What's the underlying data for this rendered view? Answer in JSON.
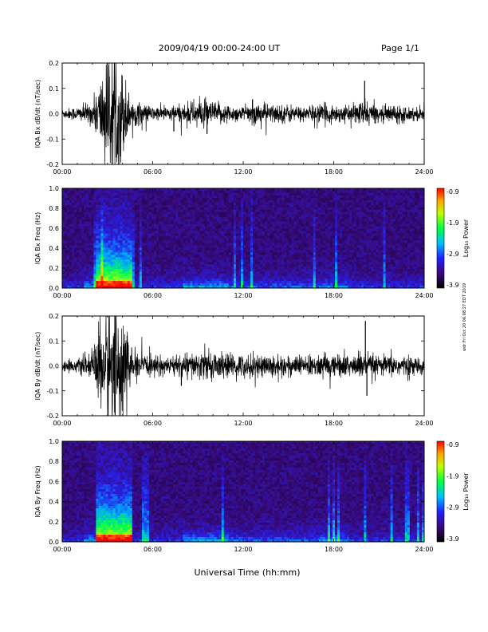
{
  "header": {
    "title": "2009/04/19  00:00-24:00 UT",
    "page": "Page 1/1"
  },
  "xlabel": "Universal Time (hh:mm)",
  "side_stamp": "wdr Fri Oct 20 06:08:27 EDT 2019",
  "colors": {
    "trace": "#000000",
    "spectrogram_low": "#1a0a2e",
    "spectrogram_high": "#ff0000"
  },
  "colorbar": {
    "label": "Log₁₀ Power",
    "label_text": "Log₁₀ Power",
    "ticks": [
      "-0.9",
      "-1.9",
      "-2.9",
      "-3.9"
    ]
  },
  "chart_data": [
    {
      "type": "line",
      "ylabel": "IQA Bx dB/dt (nT/sec)",
      "xlim": [
        0,
        24
      ],
      "ylim": [
        -0.2,
        0.2
      ],
      "xticks": [
        "00:00",
        "06:00",
        "12:00",
        "18:00",
        "24:00"
      ],
      "yticks": [
        "0.2",
        "0.1",
        "0.0",
        "-0.1",
        "-0.2"
      ],
      "envelope": {
        "hours": [
          0,
          1,
          2,
          2.5,
          3,
          3.5,
          4,
          4.5,
          5,
          6,
          7,
          8,
          9,
          10,
          11,
          12,
          13,
          14,
          15,
          16,
          17,
          18,
          19,
          20,
          21,
          22,
          23,
          24
        ],
        "amplitude": [
          0.02,
          0.03,
          0.05,
          0.15,
          0.25,
          0.25,
          0.2,
          0.07,
          0.05,
          0.03,
          0.03,
          0.04,
          0.06,
          0.05,
          0.04,
          0.03,
          0.05,
          0.04,
          0.04,
          0.03,
          0.04,
          0.04,
          0.03,
          0.06,
          0.03,
          0.04,
          0.03,
          0.03
        ]
      },
      "spikes": [
        {
          "hour": 20.05,
          "value": 0.13
        },
        {
          "hour": 7.4,
          "value": -0.07
        },
        {
          "hour": 9.6,
          "value": -0.08
        }
      ]
    },
    {
      "type": "heatmap",
      "ylabel": "IQA Bx Freq (Hz)",
      "xlim": [
        0,
        24
      ],
      "ylim": [
        0,
        1.0
      ],
      "xticks": [
        "00:00",
        "06:00",
        "12:00",
        "18:00",
        "24:00"
      ],
      "yticks": [
        "1.0",
        "0.8",
        "0.6",
        "0.4",
        "0.2",
        "0.0"
      ],
      "color_scale": {
        "min": -3.9,
        "max": -0.9
      }
    },
    {
      "type": "line",
      "ylabel": "IQA By dB/dt (nT/sec)",
      "xlim": [
        0,
        24
      ],
      "ylim": [
        -0.2,
        0.2
      ],
      "xticks": [
        "00:00",
        "06:00",
        "12:00",
        "18:00",
        "24:00"
      ],
      "yticks": [
        "0.2",
        "0.1",
        "0.0",
        "-0.1",
        "-0.2"
      ],
      "envelope": {
        "hours": [
          0,
          1,
          2,
          2.5,
          3,
          3.5,
          4,
          4.5,
          5,
          6,
          7,
          8,
          9,
          10,
          11,
          12,
          13,
          14,
          15,
          16,
          17,
          18,
          19,
          20,
          21,
          22,
          23,
          24
        ],
        "amplitude": [
          0.02,
          0.03,
          0.05,
          0.2,
          0.28,
          0.28,
          0.25,
          0.08,
          0.05,
          0.04,
          0.04,
          0.05,
          0.06,
          0.06,
          0.05,
          0.05,
          0.05,
          0.05,
          0.05,
          0.04,
          0.05,
          0.05,
          0.05,
          0.06,
          0.04,
          0.05,
          0.04,
          0.03
        ]
      },
      "spikes": [
        {
          "hour": 20.1,
          "value": 0.18
        },
        {
          "hour": 20.2,
          "value": -0.12
        },
        {
          "hour": 7.9,
          "value": -0.08
        }
      ]
    },
    {
      "type": "heatmap",
      "ylabel": "IQA By Freq (Hz)",
      "xlim": [
        0,
        24
      ],
      "ylim": [
        0,
        1.0
      ],
      "xticks": [
        "00:00",
        "06:00",
        "12:00",
        "18:00",
        "24:00"
      ],
      "yticks": [
        "1.0",
        "0.8",
        "0.6",
        "0.4",
        "0.2",
        "0.0"
      ],
      "color_scale": {
        "min": -3.9,
        "max": -0.9
      }
    }
  ]
}
